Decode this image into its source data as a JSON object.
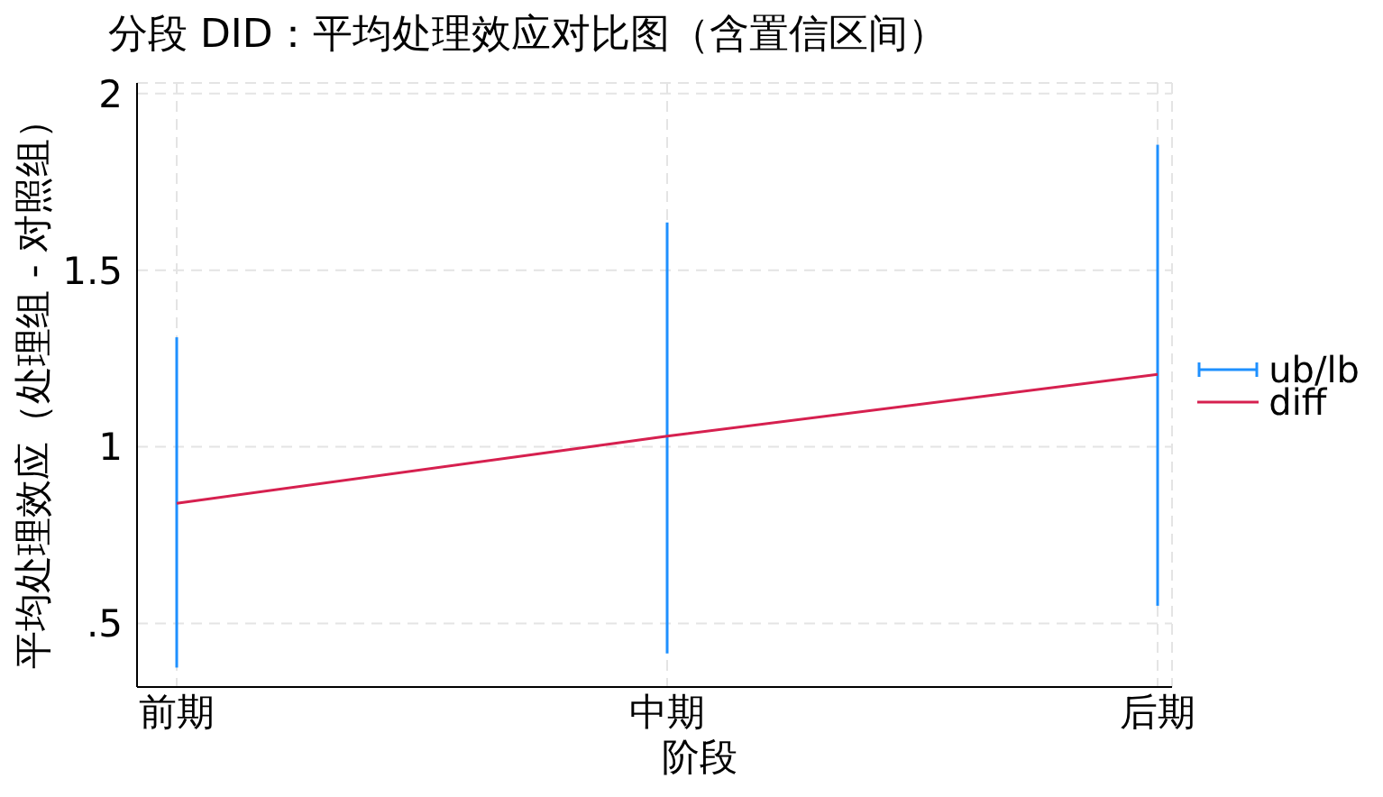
{
  "chart_data": {
    "type": "line",
    "title": "分段 DID：平均处理效应对比图（含置信区间）",
    "xlabel": "阶段",
    "ylabel": "平均处理效应（处理组 - 对照组）",
    "categories": [
      "前期",
      "中期",
      "后期"
    ],
    "series": [
      {
        "name": "ub/lb",
        "type": "bar",
        "color": "#1e90ff",
        "base": [
          0.375,
          0.415,
          0.55
        ],
        "values": [
          0.935,
          1.22,
          1.305
        ]
      },
      {
        "name": "diff",
        "marker": "none",
        "color": "#d6204f",
        "values": [
          0.84,
          1.03,
          1.205
        ]
      }
    ],
    "ylim": [
      0.32,
      2.03
    ],
    "yticks": [
      {
        "value": 0.5,
        "label": ".5"
      },
      1,
      1.5,
      2
    ],
    "grid": true,
    "legend": "right"
  }
}
